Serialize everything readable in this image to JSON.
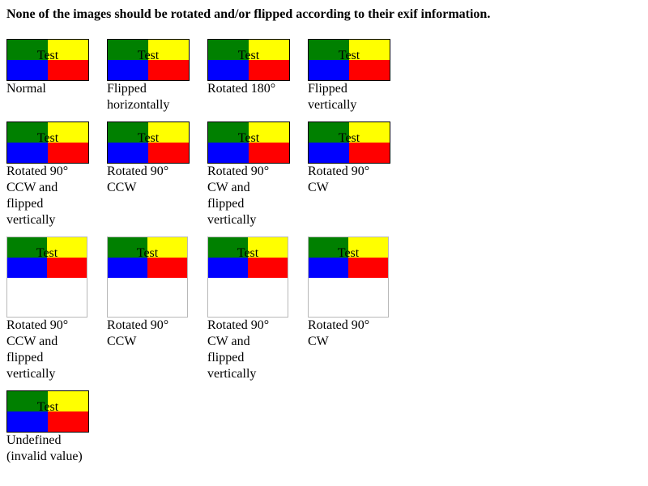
{
  "heading": "None of the images should be rotated and/or flipped according to their exif information.",
  "image_text": "Test",
  "colors": {
    "top_left": "#008000",
    "top_right": "#ffff00",
    "bottom_left": "#0000ff",
    "bottom_right": "#ff0000"
  },
  "items": [
    {
      "caption": "Normal"
    },
    {
      "caption": "Flipped horizontally"
    },
    {
      "caption": "Rotated 180°"
    },
    {
      "caption": "Flipped vertically"
    },
    {
      "caption": "Rotated 90° CCW and flipped vertically"
    },
    {
      "caption": "Rotated 90° CCW"
    },
    {
      "caption": "Rotated 90° CW and flipped vertically"
    },
    {
      "caption": "Rotated 90° CW"
    },
    {
      "caption": "Rotated 90° CCW and flipped vertically"
    },
    {
      "caption": "Rotated 90° CCW"
    },
    {
      "caption": "Rotated 90° CW and flipped vertically"
    },
    {
      "caption": "Rotated 90° CW"
    },
    {
      "caption": "Undefined (invalid value)"
    }
  ]
}
